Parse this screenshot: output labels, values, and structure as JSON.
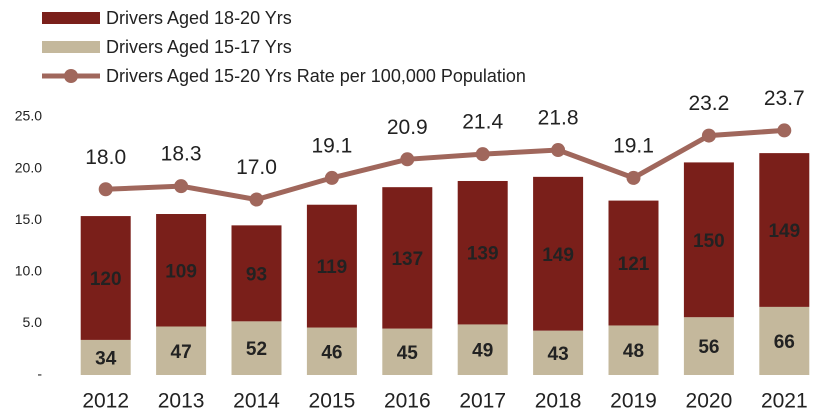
{
  "chart_data": {
    "type": "bar",
    "stacked": true,
    "categories": [
      "2012",
      "2013",
      "2014",
      "2015",
      "2016",
      "2017",
      "2018",
      "2019",
      "2020",
      "2021"
    ],
    "series": [
      {
        "name": "Drivers Aged 15-17 Yrs",
        "color": "#c4b89c",
        "axis": "y2",
        "values": [
          34,
          47,
          52,
          46,
          45,
          49,
          43,
          48,
          56,
          66
        ]
      },
      {
        "name": "Drivers Aged 18-20 Yrs",
        "color": "#7a1f1a",
        "axis": "y2",
        "values": [
          120,
          109,
          93,
          119,
          137,
          139,
          149,
          121,
          150,
          149
        ]
      },
      {
        "name": "Drivers Aged 15-20 Yrs Rate per 100,000 Population",
        "color": "#a0675c",
        "type": "line",
        "values": [
          18.0,
          18.3,
          17.0,
          19.1,
          20.9,
          21.4,
          21.8,
          19.1,
          23.2,
          23.7
        ],
        "value_labels": [
          "18.0",
          "18.3",
          "17.0",
          "19.1",
          "20.9",
          "21.4",
          "21.8",
          "19.1",
          "23.2",
          "23.7"
        ]
      }
    ],
    "legend_order": [
      1,
      0,
      2
    ],
    "ylim": [
      0,
      25
    ],
    "yticks": [
      {
        "value": 0,
        "label": "-"
      },
      {
        "value": 5,
        "label": "5.0"
      },
      {
        "value": 10,
        "label": "10.0"
      },
      {
        "value": 15,
        "label": "15.0"
      },
      {
        "value": 20,
        "label": "20.0"
      },
      {
        "value": 25,
        "label": "25.0"
      }
    ],
    "y2lim": [
      0,
      250
    ],
    "grid": false
  }
}
